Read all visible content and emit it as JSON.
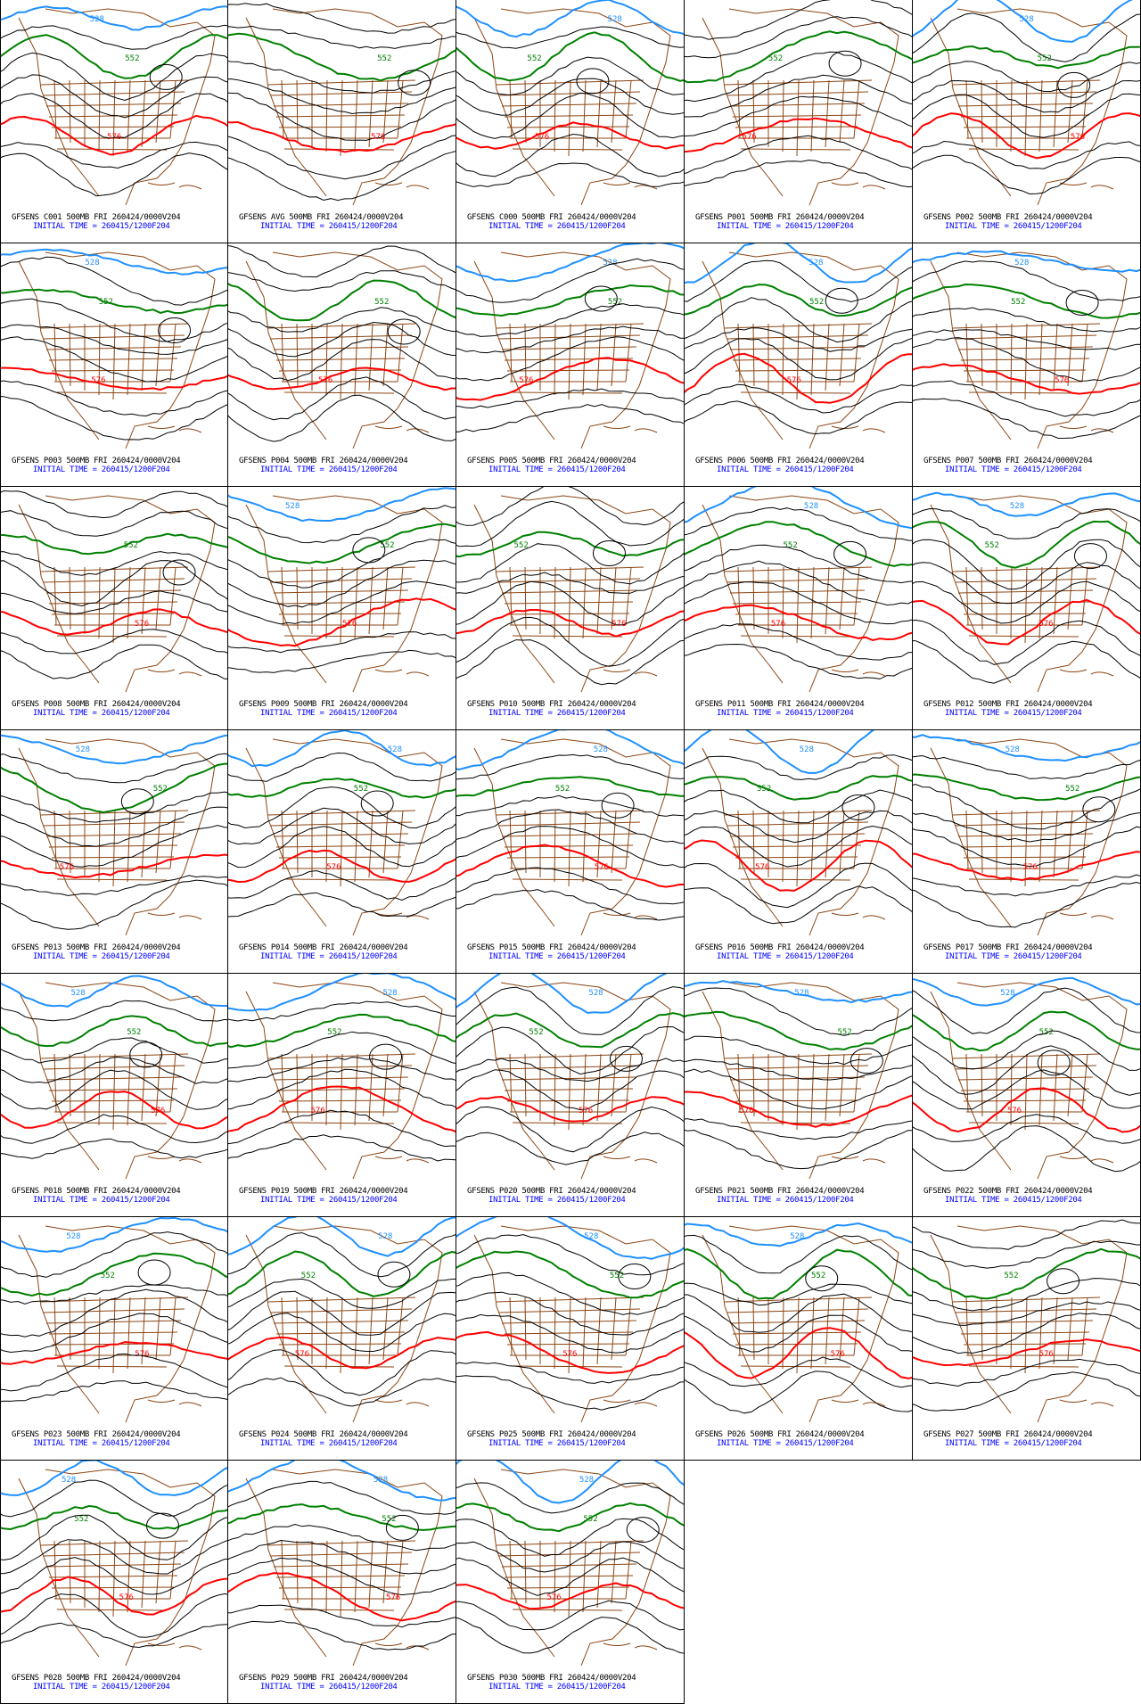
{
  "model": "GFSENS",
  "level": "500MB",
  "valid": "FRI 260424/0000V204",
  "initial_label": "INITIAL TIME = 260415/1200F204",
  "contour_levels": [
    "528",
    "552",
    "576"
  ],
  "colors": {
    "contour": "#000000",
    "c528": "#1e90ff",
    "c552": "#008000",
    "c576": "#ff0000",
    "map": "#8b4513",
    "init": "#0000ff"
  },
  "panels": [
    {
      "member": "C001",
      "title": "GFSENS C001 500MB FRI 260424/0000V204",
      "b528": true
    },
    {
      "member": "AVG",
      "title": "GFSENS AVG 500MB FRI 260424/0000V204",
      "b528": false
    },
    {
      "member": "C000",
      "title": "GFSENS C000 500MB FRI 260424/0000V204",
      "b528": true
    },
    {
      "member": "P001",
      "title": "GFSENS P001 500MB FRI 260424/0000V204",
      "b528": false
    },
    {
      "member": "P002",
      "title": "GFSENS P002 500MB FRI 260424/0000V204",
      "b528": true
    },
    {
      "member": "P003",
      "title": "GFSENS P003 500MB FRI 260424/0000V204",
      "b528": true
    },
    {
      "member": "P004",
      "title": "GFSENS P004 500MB FRI 260424/0000V204",
      "b528": false
    },
    {
      "member": "P005",
      "title": "GFSENS P005 500MB FRI 260424/0000V204",
      "b528": true
    },
    {
      "member": "P006",
      "title": "GFSENS P006 500MB FRI 260424/0000V204",
      "b528": true
    },
    {
      "member": "P007",
      "title": "GFSENS P007 500MB FRI 260424/0000V204",
      "b528": true
    },
    {
      "member": "P008",
      "title": "GFSENS P008 500MB FRI 260424/0000V204",
      "b528": false
    },
    {
      "member": "P009",
      "title": "GFSENS P009 500MB FRI 260424/0000V204",
      "b528": true
    },
    {
      "member": "P010",
      "title": "GFSENS P010 500MB FRI 260424/0000V204",
      "b528": false
    },
    {
      "member": "P011",
      "title": "GFSENS P011 500MB FRI 260424/0000V204",
      "b528": true
    },
    {
      "member": "P012",
      "title": "GFSENS P012 500MB FRI 260424/0000V204",
      "b528": true
    },
    {
      "member": "P013",
      "title": "GFSENS P013 500MB FRI 260424/0000V204",
      "b528": true
    },
    {
      "member": "P014",
      "title": "GFSENS P014 500MB FRI 260424/0000V204",
      "b528": true
    },
    {
      "member": "P015",
      "title": "GFSENS P015 500MB FRI 260424/0000V204",
      "b528": true
    },
    {
      "member": "P016",
      "title": "GFSENS P016 500MB FRI 260424/0000V204",
      "b528": true
    },
    {
      "member": "P017",
      "title": "GFSENS P017 500MB FRI 260424/0000V204",
      "b528": true
    },
    {
      "member": "P018",
      "title": "GFSENS P018 500MB FRI 260424/0000V204",
      "b528": true
    },
    {
      "member": "P019",
      "title": "GFSENS P019 500MB FRI 260424/0000V204",
      "b528": true
    },
    {
      "member": "P020",
      "title": "GFSENS P020 500MB FRI 260424/0000V204",
      "b528": true
    },
    {
      "member": "P021",
      "title": "GFSENS P021 500MB FRI 260424/0000V204",
      "b528": true
    },
    {
      "member": "P022",
      "title": "GFSENS P022 500MB FRI 260424/0000V204",
      "b528": true
    },
    {
      "member": "P023",
      "title": "GFSENS P023 500MB FRI 260424/0000V204",
      "b528": true
    },
    {
      "member": "P024",
      "title": "GFSENS P024 500MB FRI 260424/0000V204",
      "b528": true
    },
    {
      "member": "P025",
      "title": "GFSENS P025 500MB FRI 260424/0000V204",
      "b528": true
    },
    {
      "member": "P026",
      "title": "GFSENS P026 500MB FRI 260424/0000V204",
      "b528": true
    },
    {
      "member": "P027",
      "title": "GFSENS P027 500MB FRI 260424/0000V204",
      "b528": false
    },
    {
      "member": "P028",
      "title": "GFSENS P028 500MB FRI 260424/0000V204",
      "b528": true
    },
    {
      "member": "P029",
      "title": "GFSENS P029 500MB FRI 260424/0000V204",
      "b528": true
    },
    {
      "member": "P030",
      "title": "GFSENS P030 500MB FRI 260424/0000V204",
      "b528": true
    }
  ]
}
